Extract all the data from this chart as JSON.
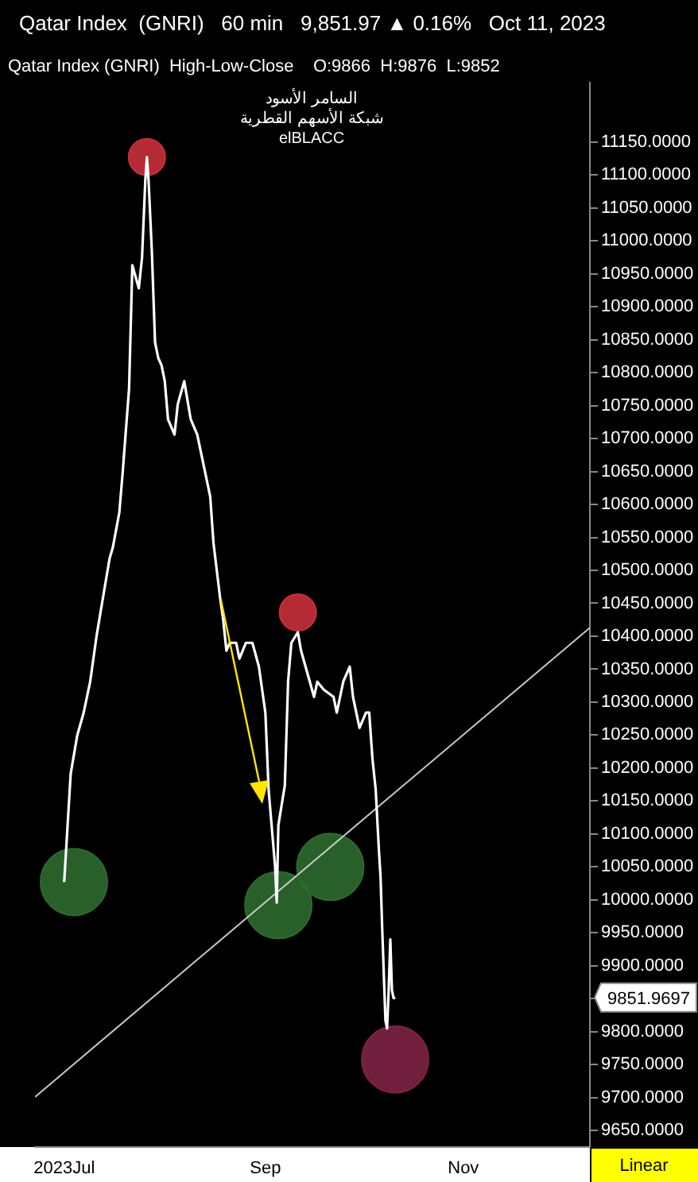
{
  "chart_data": {
    "type": "line",
    "title": "Qatar Index  (GNRI)   60 min   9,851.97 ▲ 0.16%   Oct 11, 2023",
    "subtitle": "Qatar Index (GNRI)  High-Low-Close    O:9866  H:9876  L:9852",
    "annotations": [
      "السامر الأسود",
      "شبكة الأسهم القطرية",
      "elBLACC",
      "Linear",
      "9851.9697"
    ],
    "x": [
      "2023-07-01",
      "2023-07-03",
      "2023-07-05",
      "2023-07-07",
      "2023-07-09",
      "2023-07-10",
      "2023-07-11",
      "2023-07-13",
      "2023-07-15",
      "2023-07-16",
      "2023-07-18",
      "2023-07-19",
      "2023-07-21",
      "2023-07-22",
      "2023-07-24",
      "2023-07-25",
      "2023-07-26",
      "2023-07-26T12:00",
      "2023-07-27",
      "2023-07-28",
      "2023-07-29",
      "2023-07-30",
      "2023-07-31",
      "2023-08-01",
      "2023-08-02",
      "2023-08-04",
      "2023-08-05",
      "2023-08-07",
      "2023-08-09",
      "2023-08-11",
      "2023-08-13",
      "2023-08-15",
      "2023-08-16",
      "2023-08-18",
      "2023-08-19",
      "2023-08-20",
      "2023-08-21",
      "2023-08-23",
      "2023-08-24",
      "2023-08-26",
      "2023-08-28",
      "2023-08-30",
      "2023-09-01",
      "2023-09-02",
      "2023-09-04",
      "2023-09-04T12:00",
      "2023-09-05",
      "2023-09-07",
      "2023-09-08",
      "2023-09-09",
      "2023-09-11",
      "2023-09-12",
      "2023-09-14",
      "2023-09-16",
      "2023-09-17",
      "2023-09-19",
      "2023-09-22",
      "2023-09-23",
      "2023-09-25",
      "2023-09-27",
      "2023-09-28",
      "2023-09-30",
      "2023-10-02",
      "2023-10-03",
      "2023-10-04",
      "2023-10-05",
      "2023-10-06",
      "2023-10-06T12:00",
      "2023-10-07",
      "2023-10-08",
      "2023-10-08T12:00",
      "2023-10-09",
      "2023-10-09T12:00",
      "2023-10-10",
      "2023-10-10T12:00",
      "2023-10-11"
    ],
    "series": [
      {
        "color": "#ffffff",
        "values": [
          10027,
          10191,
          10249,
          10284,
          10331,
          10366,
          10401,
          10460,
          10518,
          10535,
          10588,
          10647,
          10776,
          10963,
          10928,
          10975,
          11092,
          11127,
          11092,
          10986,
          10846,
          10822,
          10811,
          10787,
          10729,
          10706,
          10752,
          10787,
          10729,
          10706,
          10659,
          10612,
          10542,
          10460,
          10425,
          10378,
          10390,
          10390,
          10366,
          10390,
          10390,
          10354,
          10284,
          10167,
          10050,
          9996,
          10113,
          10174,
          10331,
          10390,
          10406,
          10378,
          10343,
          10308,
          10331,
          10319,
          10308,
          10284,
          10331,
          10354,
          10308,
          10261,
          10284,
          10284,
          10214,
          10167,
          10074,
          10034,
          9957,
          9817,
          9805,
          9863,
          9940,
          9863,
          9851,
          9852
        ]
      },
      {
        "type": "line",
        "color": "#cccccc",
        "x": [
          "2023-06-22",
          "2023-12-10"
        ],
        "values": [
          9701,
          10413
        ]
      },
      {
        "type": "bubble",
        "color": "#c8303c",
        "x": [
          "2023-07-26T12:00",
          "2023-09-11"
        ],
        "values": [
          11127,
          10436
        ],
        "sizes": [
          0.3,
          0.3
        ]
      },
      {
        "type": "bubble",
        "color": "#2d6a2f",
        "x": [
          "2023-07-04",
          "2023-09-05",
          "2023-09-21"
        ],
        "values": [
          10027,
          9992,
          10050
        ],
        "sizes": [
          1,
          1,
          1
        ]
      },
      {
        "type": "bubble",
        "color": "#7e2245",
        "x": [
          "2023-10-11"
        ],
        "values": [
          9758
        ],
        "sizes": [
          1
        ]
      }
    ],
    "xlim": [
      "2023-06-22",
      "2023-12-10"
    ],
    "xticks": [
      {
        "value": "2023-07-01",
        "label": "2023Jul"
      },
      {
        "value": "2023-09-01",
        "label": "Sep"
      },
      {
        "value": "2023-11-01",
        "label": "Nov"
      }
    ],
    "ylim": [
      9625,
      11240
    ],
    "yticks": [
      {
        "value": 9650,
        "label": "9650.0000"
      },
      {
        "value": 9700,
        "label": "9700.0000"
      },
      {
        "value": 9750,
        "label": "9750.0000"
      },
      {
        "value": 9800,
        "label": "9800.0000"
      },
      {
        "value": 9850,
        "label": null
      },
      {
        "value": 9900,
        "label": "9900.0000"
      },
      {
        "value": 9950,
        "label": "9950.0000"
      },
      {
        "value": 10000,
        "label": "10000.0000"
      },
      {
        "value": 10050,
        "label": "10050.0000"
      },
      {
        "value": 10100,
        "label": "10100.0000"
      },
      {
        "value": 10150,
        "label": "10150.0000"
      },
      {
        "value": 10200,
        "label": "10200.0000"
      },
      {
        "value": 10250,
        "label": "10250.0000"
      },
      {
        "value": 10300,
        "label": "10300.0000"
      },
      {
        "value": 10350,
        "label": "10350.0000"
      },
      {
        "value": 10400,
        "label": "10400.0000"
      },
      {
        "value": 10450,
        "label": "10450.0000"
      },
      {
        "value": 10500,
        "label": "10500.0000"
      },
      {
        "value": 10550,
        "label": "10550.0000"
      },
      {
        "value": 10600,
        "label": "10600.0000"
      },
      {
        "value": 10650,
        "label": "10650.0000"
      },
      {
        "value": 10700,
        "label": "10700.0000"
      },
      {
        "value": 10750,
        "label": "10750.0000"
      },
      {
        "value": 10800,
        "label": "10800.0000"
      },
      {
        "value": 10850,
        "label": "10850.0000"
      },
      {
        "value": 10900,
        "label": "10900.0000"
      },
      {
        "value": 10950,
        "label": "10950.0000"
      },
      {
        "value": 11000,
        "label": "11000.0000"
      },
      {
        "value": 11050,
        "label": "11050.0000"
      },
      {
        "value": 11100,
        "label": "11100.0000"
      },
      {
        "value": 11150,
        "label": "11150.0000"
      }
    ]
  }
}
